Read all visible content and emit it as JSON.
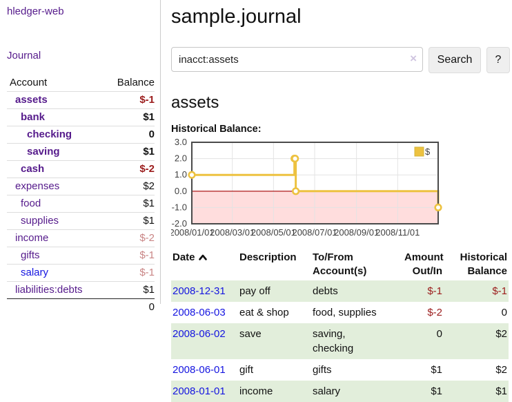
{
  "colors": {
    "link_purple": "#551a8b",
    "link_blue": "#1414e0",
    "negative_strong": "#9b1c1c",
    "negative_muted": "#c98585",
    "row_stripe_green": "#e2eedb",
    "series_yellow": "#edc240"
  },
  "sidebar": {
    "app_title": "hledger-web",
    "journal_link": "Journal",
    "table": {
      "account_header": "Account",
      "balance_header": "Balance",
      "accounts": [
        {
          "name": "assets",
          "depth": 1,
          "bold": true,
          "balance": "$-1",
          "negative": true
        },
        {
          "name": "bank",
          "depth": 2,
          "bold": true,
          "balance": "$1",
          "negative": false
        },
        {
          "name": "checking",
          "depth": 3,
          "bold": true,
          "balance": "0",
          "negative": false
        },
        {
          "name": "saving",
          "depth": 3,
          "bold": true,
          "balance": "$1",
          "negative": false
        },
        {
          "name": "cash",
          "depth": 2,
          "bold": true,
          "balance": "$-2",
          "negative": true
        },
        {
          "name": "expenses",
          "depth": 1,
          "bold": false,
          "balance": "$2",
          "negative": false
        },
        {
          "name": "food",
          "depth": 2,
          "bold": false,
          "balance": "$1",
          "negative": false
        },
        {
          "name": "supplies",
          "depth": 2,
          "bold": false,
          "balance": "$1",
          "negative": false
        },
        {
          "name": "income",
          "depth": 1,
          "bold": false,
          "balance": "$-2",
          "negative": true
        },
        {
          "name": "gifts",
          "depth": 2,
          "bold": false,
          "balance": "$-1",
          "negative": true
        },
        {
          "name": "salary",
          "depth": 2,
          "bold": false,
          "balance": "$-1",
          "negative": true,
          "link_color": "blue"
        },
        {
          "name": "liabilities:debts",
          "depth": 1,
          "bold": false,
          "balance": "$1",
          "negative": false
        }
      ],
      "total": "0"
    }
  },
  "main": {
    "title": "sample.journal",
    "search": {
      "value": "inacct:assets",
      "clear_icon": "×",
      "search_button": "Search",
      "help_button": "?"
    },
    "account_heading": "assets",
    "chart_label": "Historical Balance:"
  },
  "chart_data": {
    "type": "line",
    "step": true,
    "title": "Historical Balance",
    "legend": "$",
    "legend_position": "top-right",
    "grid": true,
    "ylim": [
      -2,
      3
    ],
    "x_range": [
      "2008-01-01",
      "2008-12-31"
    ],
    "y_ticks": [
      3.0,
      2.0,
      1.0,
      0.0,
      -1.0,
      -2.0
    ],
    "x_ticks": [
      "2008/01/01",
      "2008/03/01",
      "2008/05/01",
      "2008/07/01",
      "2008/09/01",
      "2008/11/01"
    ],
    "series": [
      {
        "name": "$",
        "color": "#edc240",
        "points": [
          [
            "2008-01-01",
            1
          ],
          [
            "2008-06-01",
            2
          ],
          [
            "2008-06-02",
            2
          ],
          [
            "2008-06-03",
            0
          ],
          [
            "2008-12-31",
            -1
          ]
        ]
      }
    ],
    "negative_region_color": "#ffdddd",
    "zero_line_color": "#a40000"
  },
  "register": {
    "columns": [
      {
        "key": "date",
        "line1": "Date",
        "line2": "",
        "align": "left",
        "sortable": true
      },
      {
        "key": "description",
        "line1": "Description",
        "line2": "",
        "align": "left"
      },
      {
        "key": "accounts",
        "line1": "To/From",
        "line2": "Account(s)",
        "align": "left"
      },
      {
        "key": "amount",
        "line1": "Amount",
        "line2": "Out/In",
        "align": "right"
      },
      {
        "key": "balance",
        "line1": "Historical",
        "line2": "Balance",
        "align": "right"
      }
    ],
    "rows": [
      {
        "date": "2008-12-31",
        "description": "pay off",
        "accounts": "debts",
        "amount": "$-1",
        "amount_negative": true,
        "balance": "$-1",
        "balance_negative": true
      },
      {
        "date": "2008-06-03",
        "description": "eat & shop",
        "accounts": "food, supplies",
        "amount": "$-2",
        "amount_negative": true,
        "balance": "0",
        "balance_negative": false
      },
      {
        "date": "2008-06-02",
        "description": "save",
        "accounts": "saving, checking",
        "amount": "0",
        "amount_negative": false,
        "balance": "$2",
        "balance_negative": false
      },
      {
        "date": "2008-06-01",
        "description": "gift",
        "accounts": "gifts",
        "amount": "$1",
        "amount_negative": false,
        "balance": "$2",
        "balance_negative": false
      },
      {
        "date": "2008-01-01",
        "description": "income",
        "accounts": "salary",
        "amount": "$1",
        "amount_negative": false,
        "balance": "$1",
        "balance_negative": false
      }
    ]
  }
}
